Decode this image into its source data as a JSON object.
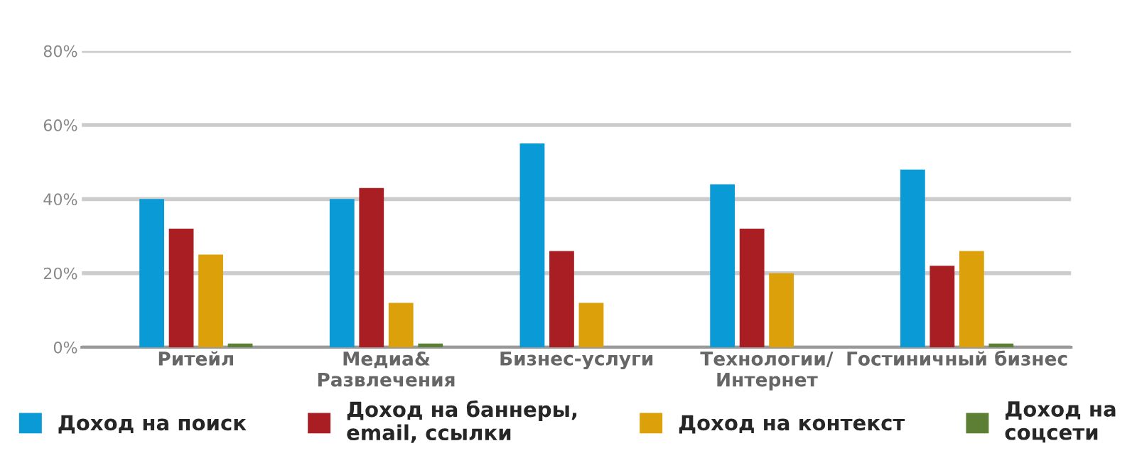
{
  "chart_data": {
    "type": "bar",
    "categories": [
      "Ритейл",
      "Медиа&\nРазвлечения",
      "Бизнес-услуги",
      "Технологии/\nИнтернет",
      "Гостиничный бизнес"
    ],
    "series": [
      {
        "name": "Доход на поиск",
        "color": "#0a9ad6",
        "values": [
          40,
          40,
          55,
          44,
          48
        ]
      },
      {
        "name": "Доход на баннеры,\nemail, ссылки",
        "color": "#a91e23",
        "values": [
          32,
          43,
          26,
          32,
          22
        ]
      },
      {
        "name": "Доход на контекст",
        "color": "#dca10a",
        "values": [
          25,
          12,
          12,
          20,
          26
        ]
      },
      {
        "name": "Доход на\nсоцсети",
        "color": "#5d7f35",
        "values": [
          1,
          1,
          null,
          null,
          1
        ]
      }
    ],
    "ylim": [
      0,
      80
    ],
    "yticks": [
      {
        "value": 0,
        "label": "0%"
      },
      {
        "value": 20,
        "label": "20%"
      },
      {
        "value": 40,
        "label": "40%"
      },
      {
        "value": 60,
        "label": "60%"
      },
      {
        "value": 80,
        "label": "80%"
      }
    ],
    "grid": "y",
    "legend": "bottom"
  }
}
